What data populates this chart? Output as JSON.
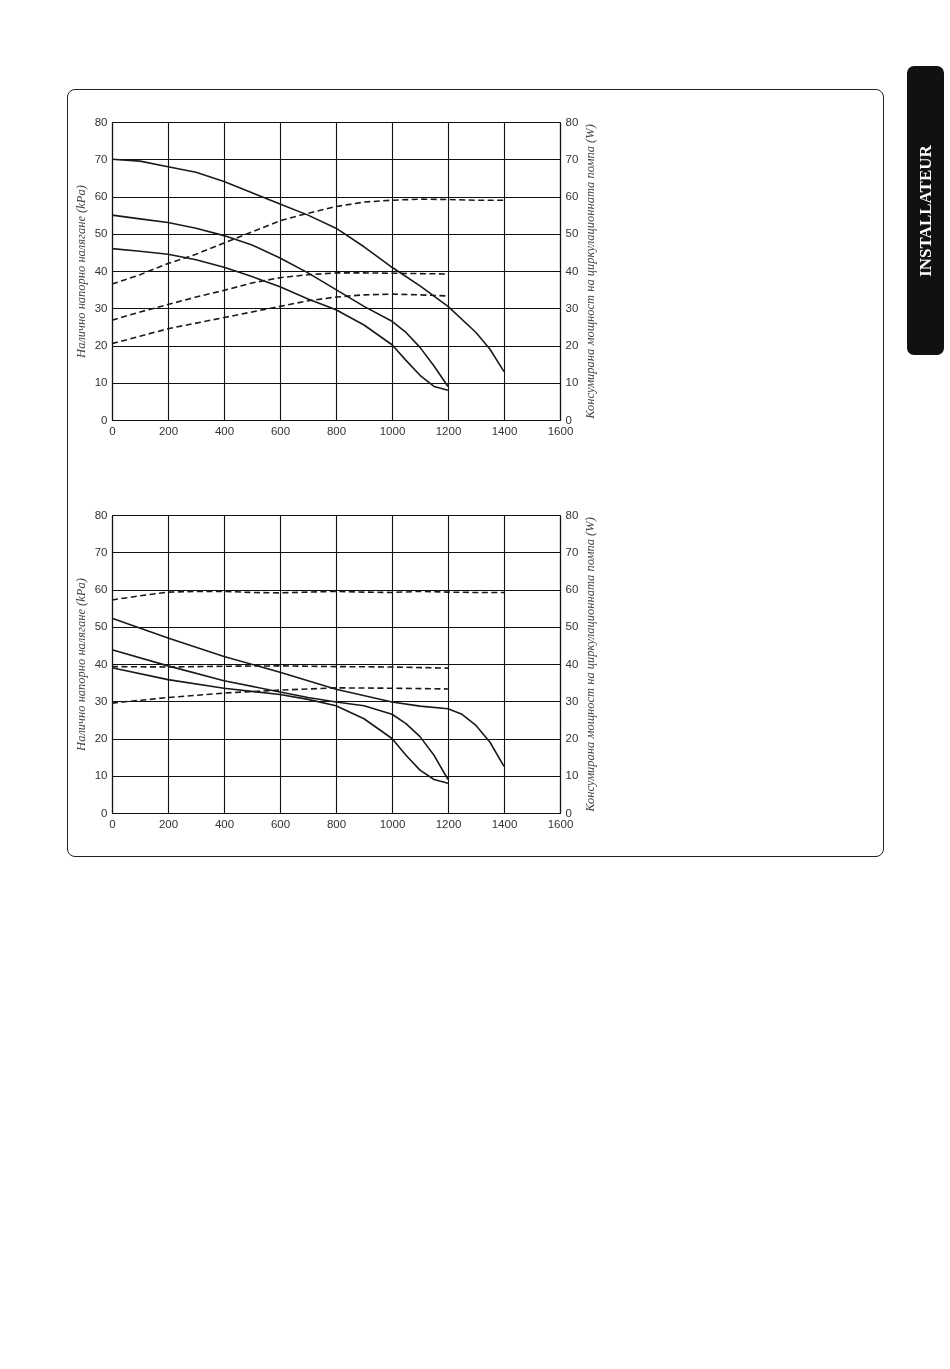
{
  "chart_data": [
    {
      "type": "line",
      "ylabel": "Налично напорно налягане (kPa)",
      "y2label": "Консумирана мощност на циркулационната помпа (W)",
      "xlim": [
        0,
        1600
      ],
      "xticks": [
        0,
        200,
        400,
        600,
        800,
        1000,
        1200,
        1400,
        1600
      ],
      "ylim": [
        0,
        80
      ],
      "yticks": [
        0,
        10,
        20,
        30,
        40,
        50,
        60,
        70,
        80
      ],
      "y2lim": [
        0,
        80
      ],
      "y2ticks": [
        0,
        10,
        20,
        30,
        40,
        50,
        60,
        70,
        80
      ],
      "grid": true,
      "annotations": [
        "INSTALLATEUR"
      ],
      "series": [
        {
          "color": "#1a1a1a",
          "line_style": "solid",
          "x": [
            0,
            100,
            200,
            300,
            400,
            500,
            600,
            700,
            800,
            900,
            1000,
            1100,
            1200,
            1300,
            1350,
            1400
          ],
          "values": [
            70,
            69.5,
            68,
            66.5,
            64,
            61,
            58,
            55,
            51.5,
            46.5,
            41,
            36,
            30.5,
            23.5,
            19,
            13
          ]
        },
        {
          "color": "#1a1a1a",
          "line_style": "solid",
          "x": [
            0,
            100,
            200,
            300,
            400,
            500,
            600,
            700,
            800,
            900,
            1000,
            1050,
            1100,
            1150,
            1200
          ],
          "values": [
            55,
            54,
            53,
            51.5,
            49.5,
            47,
            43.5,
            39.5,
            35,
            30.5,
            26.5,
            23.5,
            19.5,
            14.5,
            9
          ]
        },
        {
          "color": "#1a1a1a",
          "line_style": "solid",
          "x": [
            0,
            100,
            200,
            300,
            400,
            500,
            600,
            700,
            800,
            900,
            1000,
            1050,
            1100,
            1150,
            1200
          ],
          "values": [
            46,
            45.3,
            44.5,
            43,
            41,
            38.5,
            35.8,
            32.5,
            29.6,
            25.5,
            20.2,
            16,
            12,
            9,
            8
          ]
        },
        {
          "color": "#1a1a1a",
          "line_style": "dashed",
          "axis": "y2",
          "x": [
            0,
            100,
            200,
            300,
            400,
            500,
            600,
            700,
            800,
            900,
            1000,
            1100,
            1200,
            1300,
            1400
          ],
          "values": [
            36.5,
            39,
            42,
            44.5,
            47.5,
            50.5,
            53.5,
            55.5,
            57.3,
            58.5,
            59,
            59.3,
            59.2,
            59,
            59
          ]
        },
        {
          "color": "#1a1a1a",
          "line_style": "dashed",
          "axis": "y2",
          "x": [
            0,
            100,
            200,
            300,
            400,
            500,
            600,
            700,
            800,
            900,
            1000,
            1100,
            1200
          ],
          "values": [
            26.8,
            29,
            31,
            33,
            34.8,
            36.8,
            38.2,
            39,
            39.5,
            39.5,
            39.4,
            39.3,
            39.2
          ]
        },
        {
          "color": "#1a1a1a",
          "line_style": "dashed",
          "axis": "y2",
          "x": [
            0,
            100,
            200,
            300,
            400,
            500,
            600,
            700,
            800,
            900,
            1000,
            1100,
            1200
          ],
          "values": [
            20.5,
            22.5,
            24.5,
            26,
            27.5,
            29,
            30.5,
            32,
            33,
            33.6,
            33.8,
            33.6,
            33.3
          ]
        }
      ]
    },
    {
      "type": "line",
      "ylabel": "Налично напорно налягане (kPa)",
      "y2label": "Консумирана мощност на циркулационната помпа (W)",
      "xlim": [
        0,
        1600
      ],
      "xticks": [
        0,
        200,
        400,
        600,
        800,
        1000,
        1200,
        1400,
        1600
      ],
      "ylim": [
        0,
        80
      ],
      "yticks": [
        0,
        10,
        20,
        30,
        40,
        50,
        60,
        70,
        80
      ],
      "y2lim": [
        0,
        80
      ],
      "y2ticks": [
        0,
        10,
        20,
        30,
        40,
        50,
        60,
        70,
        80
      ],
      "grid": true,
      "series": [
        {
          "color": "#1a1a1a",
          "line_style": "solid",
          "x": [
            0,
            200,
            400,
            600,
            800,
            1000,
            1100,
            1200,
            1250,
            1300,
            1350,
            1400
          ],
          "values": [
            52.3,
            47,
            42,
            37.8,
            33.2,
            29.8,
            28.7,
            28,
            26.5,
            23.5,
            19,
            12.5
          ]
        },
        {
          "color": "#1a1a1a",
          "line_style": "solid",
          "x": [
            0,
            200,
            400,
            600,
            700,
            800,
            900,
            1000,
            1050,
            1100,
            1150,
            1200
          ],
          "values": [
            43.8,
            39.5,
            35.5,
            32.5,
            31,
            29.8,
            28.8,
            26.5,
            24,
            20.5,
            15.5,
            9
          ]
        },
        {
          "color": "#1a1a1a",
          "line_style": "solid",
          "x": [
            0,
            200,
            400,
            600,
            700,
            800,
            900,
            1000,
            1050,
            1100,
            1150,
            1200
          ],
          "values": [
            39,
            35.8,
            33.5,
            31.8,
            30.5,
            28.8,
            25.3,
            20,
            15.5,
            11.5,
            9,
            8
          ]
        },
        {
          "color": "#1a1a1a",
          "line_style": "dashed",
          "axis": "y2",
          "x": [
            0,
            100,
            200,
            300,
            400,
            500,
            600,
            700,
            800,
            900,
            1000,
            1100,
            1200,
            1300,
            1400
          ],
          "values": [
            57.2,
            58.3,
            59.3,
            59.5,
            59.5,
            59.2,
            59.1,
            59.3,
            59.5,
            59.3,
            59.2,
            59.5,
            59.3,
            59.2,
            59.2
          ]
        },
        {
          "color": "#1a1a1a",
          "line_style": "dashed",
          "axis": "y2",
          "x": [
            0,
            200,
            400,
            600,
            800,
            1000,
            1200
          ],
          "values": [
            39.3,
            39.2,
            39.4,
            39.5,
            39.3,
            39.2,
            38.9
          ]
        },
        {
          "color": "#1a1a1a",
          "line_style": "dashed",
          "axis": "y2",
          "x": [
            0,
            200,
            400,
            600,
            800,
            1000,
            1200
          ],
          "values": [
            29.5,
            31,
            32.2,
            33,
            33.6,
            33.5,
            33.3
          ]
        }
      ]
    }
  ]
}
